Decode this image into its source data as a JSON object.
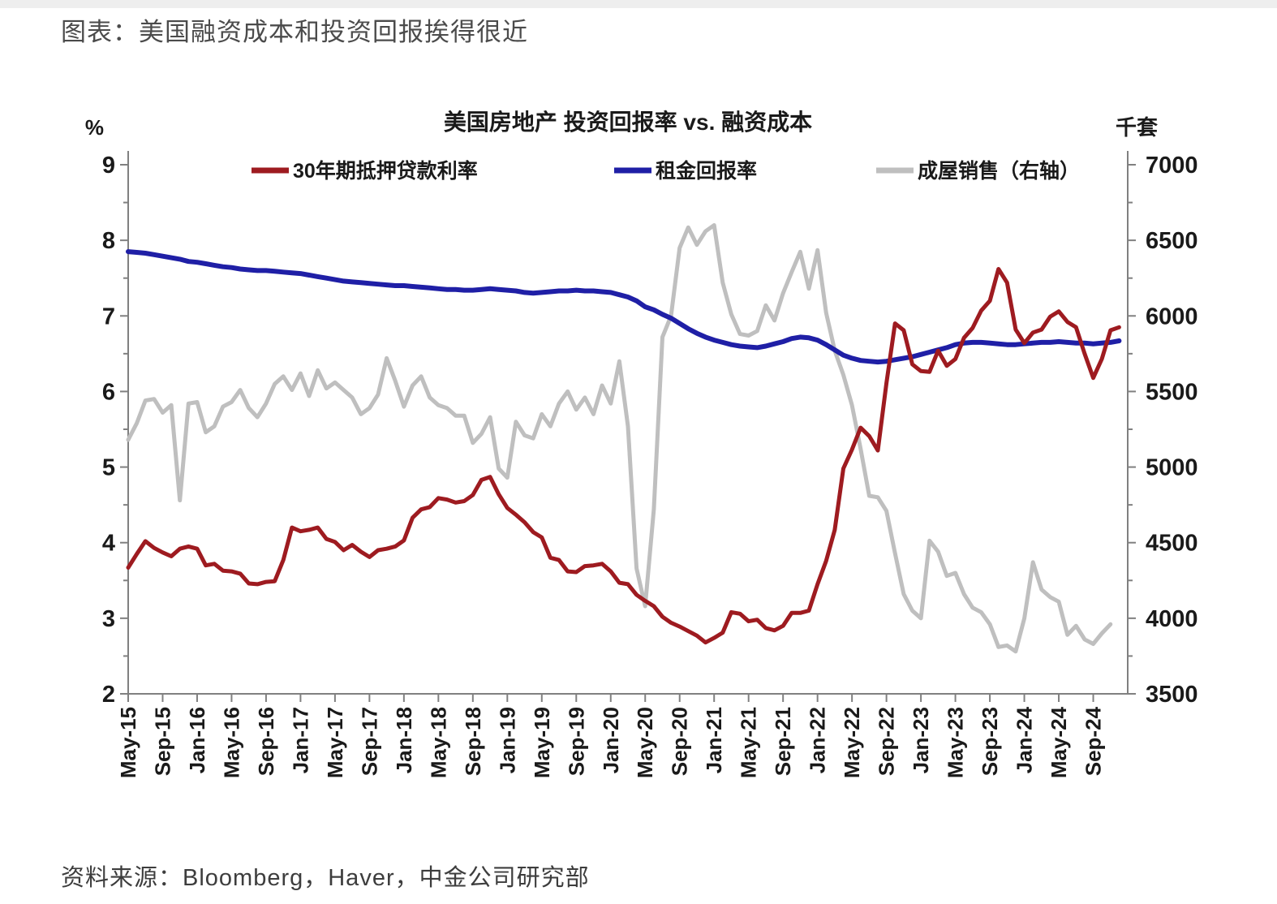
{
  "page": {
    "title": "图表：美国融资成本和投资回报挨得很近",
    "source": "资料来源：Bloomberg，Haver，中金公司研究部"
  },
  "chart_data": {
    "type": "line",
    "title": "美国房地产 投资回报率 vs. 融资成本",
    "left_axis": {
      "label": "%",
      "min": 2,
      "max": 9,
      "major_step": 1,
      "minor_step": 0.5,
      "tick_labels": [
        "9",
        "8",
        "7",
        "6",
        "5",
        "4",
        "3",
        "2"
      ]
    },
    "right_axis": {
      "label": "千套",
      "min": 3500,
      "max": 7000,
      "major_step": 500,
      "minor_step": 250,
      "tick_labels": [
        "7000",
        "6500",
        "6000",
        "5500",
        "5000",
        "4500",
        "4000",
        "3500"
      ]
    },
    "x_axis": {
      "start": "May-15",
      "end": "Dec-24",
      "months_total": 116,
      "tick_every_months": 4,
      "tick_labels": [
        "May-15",
        "Sep-15",
        "Jan-16",
        "May-16",
        "Sep-16",
        "Jan-17",
        "May-17",
        "Sep-17",
        "Jan-18",
        "May-18",
        "Sep-18",
        "Jan-19",
        "May-19",
        "Sep-19",
        "Jan-20",
        "May-20",
        "Sep-20",
        "Jan-21",
        "May-21",
        "Sep-21",
        "Jan-22",
        "May-22",
        "Sep-22",
        "Jan-23",
        "May-23",
        "Sep-23",
        "Jan-24",
        "May-24",
        "Sep-24"
      ]
    },
    "grid": false,
    "legend_position": "top",
    "colors": {
      "axis": "#808080",
      "text": "#1a1a1a",
      "mortgage": "#9e1b20",
      "rent": "#1f1fa6",
      "sales": "#bfbfbf"
    },
    "series": [
      {
        "name": "30年期抵押贷款利率",
        "axis": "left",
        "color": "#9e1b20",
        "width": 5,
        "values": [
          3.67,
          3.85,
          4.02,
          3.93,
          3.87,
          3.82,
          3.92,
          3.95,
          3.92,
          3.7,
          3.72,
          3.63,
          3.62,
          3.59,
          3.46,
          3.45,
          3.48,
          3.49,
          3.77,
          4.2,
          4.15,
          4.17,
          4.2,
          4.05,
          4.01,
          3.9,
          3.97,
          3.88,
          3.81,
          3.9,
          3.92,
          3.95,
          4.03,
          4.33,
          4.44,
          4.47,
          4.59,
          4.57,
          4.53,
          4.55,
          4.63,
          4.83,
          4.87,
          4.64,
          4.46,
          4.37,
          4.27,
          4.14,
          4.07,
          3.8,
          3.77,
          3.62,
          3.61,
          3.69,
          3.7,
          3.72,
          3.62,
          3.47,
          3.45,
          3.31,
          3.23,
          3.16,
          3.02,
          2.94,
          2.89,
          2.83,
          2.77,
          2.68,
          2.74,
          2.81,
          3.08,
          3.06,
          2.96,
          2.98,
          2.87,
          2.84,
          2.9,
          3.07,
          3.07,
          3.1,
          3.45,
          3.76,
          4.17,
          4.98,
          5.23,
          5.52,
          5.41,
          5.22,
          6.11,
          6.9,
          6.81,
          6.36,
          6.27,
          6.26,
          6.54,
          6.34,
          6.43,
          6.71,
          6.84,
          7.07,
          7.2,
          7.62,
          7.44,
          6.82,
          6.64,
          6.78,
          6.82,
          6.99,
          7.06,
          6.92,
          6.85,
          6.5,
          6.18,
          6.43,
          6.81,
          6.85
        ]
      },
      {
        "name": "租金回报率",
        "axis": "left",
        "color": "#1f1fa6",
        "width": 6,
        "values": [
          7.85,
          7.84,
          7.83,
          7.81,
          7.79,
          7.77,
          7.75,
          7.72,
          7.71,
          7.69,
          7.67,
          7.65,
          7.64,
          7.62,
          7.61,
          7.6,
          7.6,
          7.59,
          7.58,
          7.57,
          7.56,
          7.54,
          7.52,
          7.5,
          7.48,
          7.46,
          7.45,
          7.44,
          7.43,
          7.42,
          7.41,
          7.4,
          7.4,
          7.39,
          7.38,
          7.37,
          7.36,
          7.35,
          7.35,
          7.34,
          7.34,
          7.35,
          7.36,
          7.35,
          7.34,
          7.33,
          7.31,
          7.3,
          7.31,
          7.32,
          7.33,
          7.33,
          7.34,
          7.33,
          7.33,
          7.32,
          7.31,
          7.28,
          7.25,
          7.2,
          7.12,
          7.08,
          7.02,
          6.97,
          6.9,
          6.83,
          6.77,
          6.72,
          6.68,
          6.65,
          6.62,
          6.6,
          6.59,
          6.58,
          6.6,
          6.63,
          6.66,
          6.7,
          6.72,
          6.71,
          6.68,
          6.62,
          6.55,
          6.48,
          6.44,
          6.41,
          6.4,
          6.39,
          6.4,
          6.42,
          6.44,
          6.46,
          6.49,
          6.52,
          6.55,
          6.58,
          6.62,
          6.64,
          6.65,
          6.65,
          6.64,
          6.63,
          6.62,
          6.62,
          6.63,
          6.64,
          6.65,
          6.65,
          6.66,
          6.65,
          6.64,
          6.64,
          6.63,
          6.64,
          6.65,
          6.67
        ]
      },
      {
        "name": "成屋销售（右轴）",
        "axis": "right",
        "color": "#bfbfbf",
        "width": 5,
        "values": [
          5180,
          5290,
          5440,
          5450,
          5360,
          5410,
          4780,
          5420,
          5430,
          5230,
          5270,
          5400,
          5430,
          5510,
          5390,
          5330,
          5420,
          5550,
          5600,
          5510,
          5620,
          5470,
          5640,
          5520,
          5560,
          5510,
          5460,
          5350,
          5390,
          5480,
          5720,
          5570,
          5400,
          5540,
          5600,
          5460,
          5410,
          5390,
          5340,
          5340,
          5160,
          5220,
          5330,
          4990,
          4930,
          5300,
          5210,
          5190,
          5350,
          5270,
          5420,
          5500,
          5380,
          5460,
          5350,
          5540,
          5420,
          5700,
          5270,
          4330,
          4080,
          4720,
          5860,
          6000,
          6450,
          6585,
          6470,
          6560,
          6600,
          6220,
          6010,
          5880,
          5870,
          5900,
          6070,
          5970,
          6150,
          6290,
          6424,
          6180,
          6435,
          6020,
          5770,
          5610,
          5410,
          5120,
          4810,
          4800,
          4710,
          4430,
          4160,
          4050,
          4000,
          4513,
          4440,
          4280,
          4300,
          4160,
          4070,
          4040,
          3960,
          3810,
          3820,
          3780,
          4000,
          4370,
          4190,
          4140,
          4110,
          3890,
          3950,
          3860,
          3830,
          3900,
          3960,
          null
        ]
      }
    ],
    "draw_order": [
      2,
      1,
      0
    ]
  }
}
